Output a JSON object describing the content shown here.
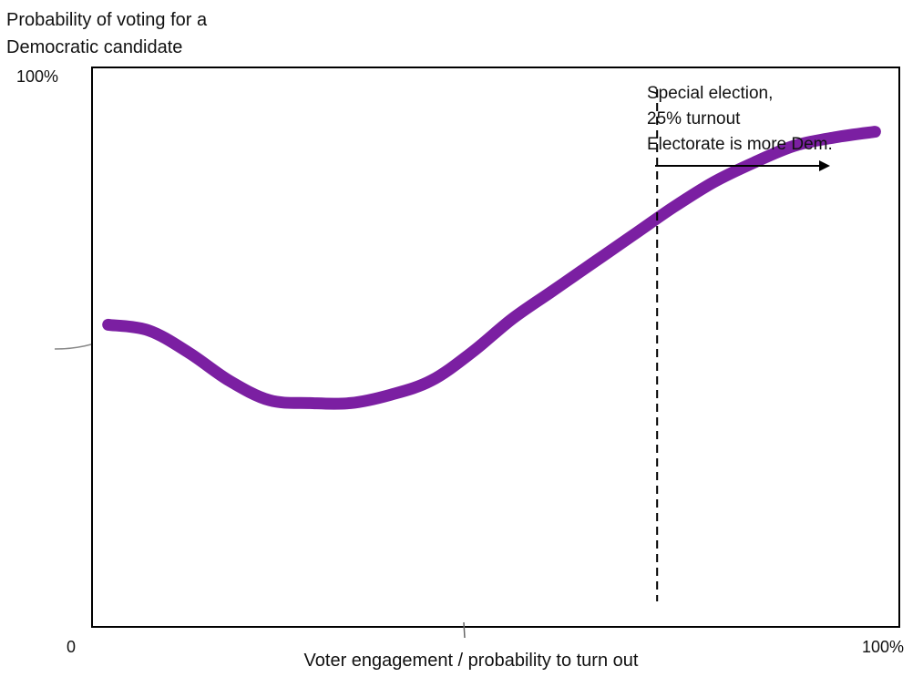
{
  "chart_data": {
    "type": "line",
    "title": "",
    "ylabel_lines": [
      "Probability of voting for a",
      "Democratic candidate"
    ],
    "xlabel": "Voter engagement / probability to turn out",
    "y_tick_top": "100%",
    "x_tick_left": "0",
    "x_tick_right": "100%",
    "xlim": [
      0,
      100
    ],
    "ylim": [
      0,
      100
    ],
    "grid": false,
    "legend": "none",
    "series": [
      {
        "color": "#7b1fa2",
        "x": [
          2,
          7,
          12,
          17,
          22,
          27,
          32,
          37,
          42,
          47,
          52,
          57,
          62,
          67,
          72,
          77,
          82,
          87,
          92,
          97
        ],
        "y": [
          54,
          53,
          49,
          44,
          40.5,
          40,
          40,
          41.5,
          44,
          49,
          55,
          60,
          65,
          70,
          75,
          79.5,
          83,
          86,
          87.5,
          88.5
        ]
      }
    ],
    "threshold": {
      "x": 70,
      "style": "dashed",
      "annotation_lines": [
        "Special election,",
        "25% turnout",
        "Electorate is more Dem."
      ],
      "arrow_direction": "right"
    },
    "colors": {
      "line": "#7b1fa2",
      "axes": "#000000",
      "text": "#111111"
    }
  }
}
